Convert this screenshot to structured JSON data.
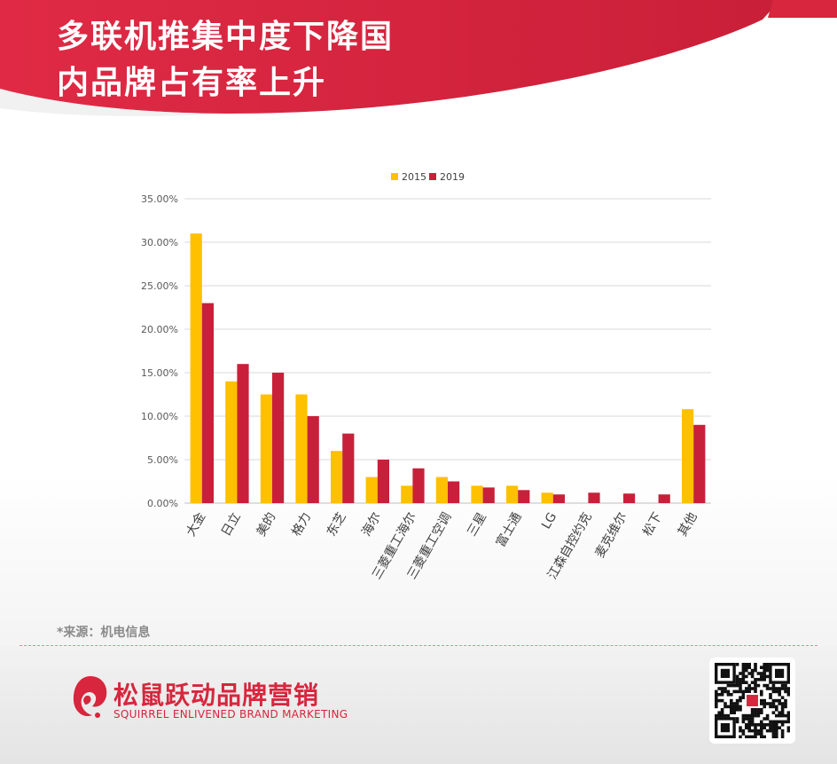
{
  "title": {
    "line1": "多联机推集中度下降国",
    "line2": "内品牌占有率上升"
  },
  "colors": {
    "accent": "#d7263d",
    "series_2015": "#ffc000",
    "series_2019": "#c8203a",
    "grid": "#d9d9d9"
  },
  "chart_data": {
    "type": "bar",
    "categories": [
      "大金",
      "日立",
      "美的",
      "格力",
      "东芝",
      "海尔",
      "三菱重工海尔",
      "三菱重工空调",
      "三星",
      "富士通",
      "LG",
      "江森自控约克",
      "麦克维尔",
      "松下",
      "其他"
    ],
    "series": [
      {
        "name": "2015",
        "values": [
          31.0,
          14.0,
          12.5,
          12.5,
          6.0,
          3.0,
          2.0,
          3.0,
          2.0,
          2.0,
          1.2,
          0,
          0,
          0,
          10.8
        ]
      },
      {
        "name": "2019",
        "values": [
          23.0,
          16.0,
          15.0,
          10.0,
          8.0,
          5.0,
          4.0,
          2.5,
          1.8,
          1.5,
          1.0,
          1.2,
          1.1,
          1.0,
          9.0
        ]
      }
    ],
    "yticks": [
      "0.00%",
      "5.00%",
      "10.00%",
      "15.00%",
      "20.00%",
      "25.00%",
      "30.00%",
      "35.00%"
    ],
    "ylim": [
      0,
      35
    ],
    "legend_position": "top",
    "grid": true
  },
  "source": "*来源：机电信息",
  "brand": {
    "name_cn": "松鼠跃动品牌营销",
    "name_en": "SQUIRREL ENLIVENED BRAND MARKETING"
  },
  "qr_icon": "qr-code-icon"
}
